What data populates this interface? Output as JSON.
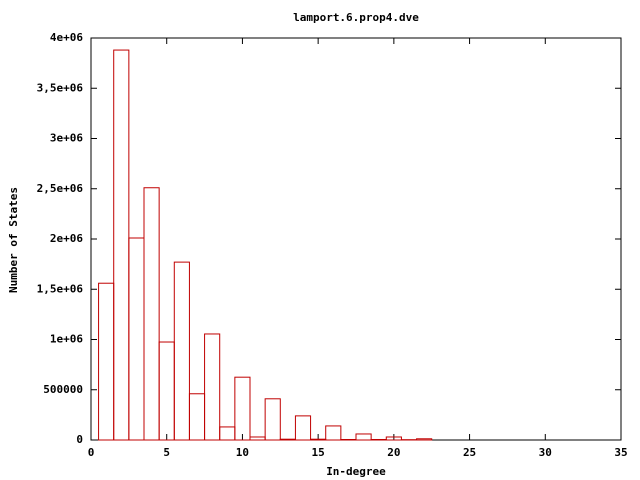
{
  "chart_data": {
    "type": "histogram",
    "title": "lamport.6.prop4.dve",
    "x_label": "In-degree",
    "y_label": "Number of States",
    "bins": [
      0.5,
      1.5,
      2.5,
      3.5,
      4.5,
      5.5,
      6.5,
      7.5,
      8.5,
      9.5,
      10.5,
      11.5,
      12.5,
      13.5,
      14.5,
      15.5,
      16.5,
      17.5,
      18.5,
      19.5,
      20.5,
      21.5,
      22.5
    ],
    "values": [
      1560000,
      3880000,
      2010000,
      2510000,
      975000,
      1770000,
      460000,
      1055000,
      130000,
      625000,
      30000,
      410000,
      8000,
      240000,
      8000,
      140000,
      5000,
      60000,
      5000,
      30000,
      3000,
      12000
    ],
    "color": "#c00000",
    "xlim": [
      0,
      35
    ],
    "xticks": [
      0,
      5,
      10,
      15,
      20,
      25,
      30,
      35
    ],
    "ylim": [
      0,
      4000000
    ],
    "yticks": [
      0,
      500000,
      {
        "value": 1000000,
        "label": "1e+06"
      },
      {
        "value": 1500000,
        "label": "1,5e+06"
      },
      {
        "value": 2000000,
        "label": "2e+06"
      },
      {
        "value": 2500000,
        "label": "2,5e+06"
      },
      {
        "value": 3000000,
        "label": "3e+06"
      },
      {
        "value": 3500000,
        "label": "3,5e+06"
      },
      {
        "value": 4000000,
        "label": "4e+06"
      }
    ]
  }
}
